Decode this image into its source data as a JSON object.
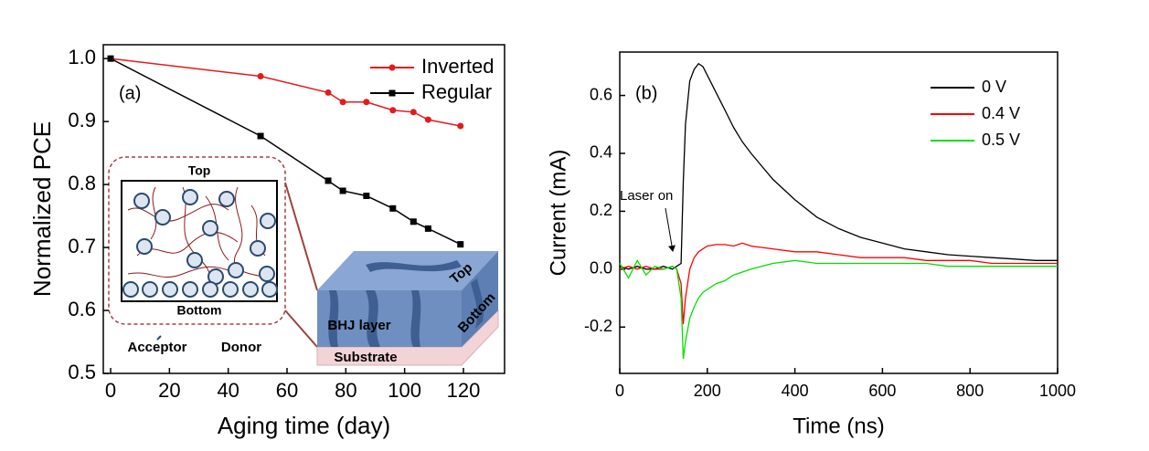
{
  "chart_data": [
    {
      "type": "line",
      "x_label": "Aging time (day)",
      "y_label": "Normalized PCE",
      "x": [
        0,
        51,
        74,
        79,
        87,
        96,
        103,
        108,
        119
      ],
      "series": [
        {
          "name": "Inverted",
          "color": "#e41a1c",
          "marker": "circle",
          "values": [
            1.0,
            0.972,
            0.946,
            0.931,
            0.931,
            0.918,
            0.915,
            0.903,
            0.893
          ]
        },
        {
          "name": "Regular",
          "color": "#000000",
          "marker": "square",
          "values": [
            1.0,
            0.877,
            0.806,
            0.79,
            0.782,
            0.762,
            0.741,
            0.73,
            0.705
          ]
        }
      ],
      "xlim": [
        -2.5,
        134
      ],
      "ylim": [
        0.5,
        1.022
      ],
      "xticks": [
        0,
        20,
        40,
        60,
        80,
        100,
        120
      ],
      "yticks": [
        0.5,
        0.6,
        0.7,
        0.8,
        0.9,
        {
          "value": 1,
          "label": "1.0"
        }
      ],
      "legend": "upper right",
      "annotations": [
        "(a)",
        "Top",
        "Bottom",
        "Acceptor",
        "Donor",
        "BHJ layer",
        "Substrate",
        "Top",
        "Bottom"
      ]
    },
    {
      "type": "line",
      "x_label": "Time (ns)",
      "y_label": "Current (mA)",
      "x": [
        0,
        20,
        40,
        60,
        80,
        100,
        120,
        130,
        140,
        145,
        150,
        160,
        170,
        180,
        190,
        200,
        220,
        240,
        260,
        280,
        300,
        350,
        400,
        450,
        500,
        550,
        600,
        650,
        700,
        750,
        800,
        850,
        900,
        950,
        1000
      ],
      "series": [
        {
          "name": "0 V",
          "color": "#000000",
          "values": [
            0.01,
            0.0,
            0.01,
            0.0,
            0.0,
            0.01,
            0.0,
            0.01,
            0.02,
            0.3,
            0.5,
            0.65,
            0.69,
            0.71,
            0.7,
            0.67,
            0.61,
            0.55,
            0.49,
            0.44,
            0.4,
            0.31,
            0.24,
            0.18,
            0.14,
            0.11,
            0.09,
            0.07,
            0.06,
            0.05,
            0.045,
            0.04,
            0.035,
            0.03,
            0.03
          ]
        },
        {
          "name": "0.4 V",
          "color": "#ff0000",
          "values": [
            0.0,
            0.01,
            0.0,
            0.01,
            0.0,
            0.0,
            0.01,
            0.0,
            -0.05,
            -0.19,
            -0.1,
            0.0,
            0.04,
            0.06,
            0.07,
            0.08,
            0.085,
            0.085,
            0.08,
            0.09,
            0.08,
            0.07,
            0.06,
            0.06,
            0.05,
            0.04,
            0.04,
            0.04,
            0.03,
            0.03,
            0.03,
            0.02,
            0.02,
            0.02,
            0.02
          ]
        },
        {
          "name": "0.5 V",
          "color": "#00e000",
          "values": [
            0.02,
            -0.03,
            0.03,
            -0.02,
            0.01,
            0.0,
            0.01,
            0.0,
            -0.1,
            -0.31,
            -0.25,
            -0.17,
            -0.13,
            -0.1,
            -0.08,
            -0.07,
            -0.05,
            -0.04,
            -0.02,
            -0.01,
            0.0,
            0.02,
            0.03,
            0.02,
            0.02,
            0.02,
            0.02,
            0.02,
            0.02,
            0.01,
            0.01,
            0.01,
            0.01,
            0.01,
            0.01
          ]
        }
      ],
      "xlim": [
        0,
        1000
      ],
      "ylim": [
        -0.36,
        0.75
      ],
      "xticks": [
        0,
        200,
        400,
        600,
        800,
        1000
      ],
      "yticks": [
        -0.2,
        {
          "value": 0,
          "label": "0.0"
        },
        0.2,
        0.4,
        0.6
      ],
      "legend": "upper right",
      "annotations": [
        "(b)",
        "Laser on"
      ]
    }
  ]
}
